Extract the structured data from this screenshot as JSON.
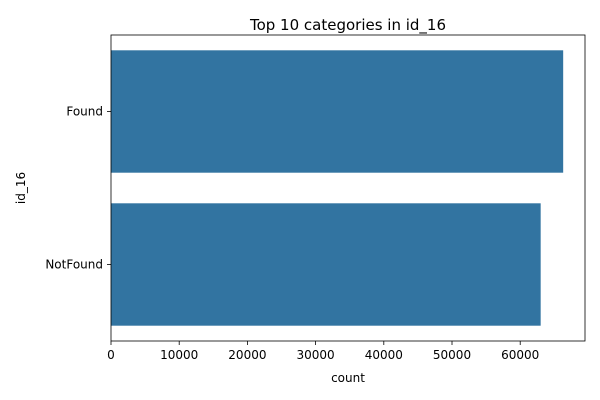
{
  "chart_data": {
    "type": "bar",
    "orientation": "horizontal",
    "title": "Top 10 categories in id_16",
    "xlabel": "count",
    "ylabel": "id_16",
    "categories": [
      "Found",
      "NotFound"
    ],
    "values": [
      66300,
      63000
    ],
    "xlim": [
      0,
      69500
    ],
    "xticks": [
      0,
      10000,
      20000,
      30000,
      40000,
      50000,
      60000
    ],
    "xtick_labels": [
      "0",
      "10000",
      "20000",
      "30000",
      "40000",
      "50000",
      "60000"
    ],
    "bar_color": "#3274a1",
    "grid": false,
    "legend": "none"
  }
}
